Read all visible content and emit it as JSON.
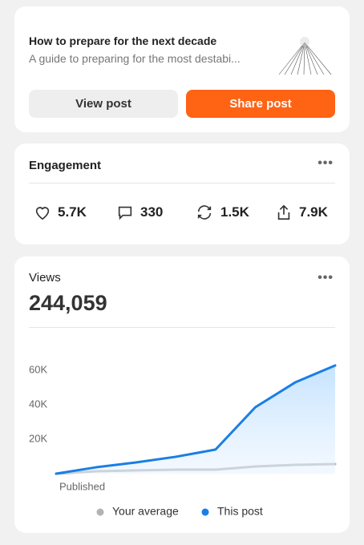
{
  "post": {
    "title": "How to prepare for the next decade",
    "subtitle": "A guide to preparing for the most destabi...",
    "view_button": "View post",
    "share_button": "Share post"
  },
  "engagement": {
    "title": "Engagement",
    "likes": "5.7K",
    "comments": "330",
    "restacks": "1.5K",
    "shares": "7.9K"
  },
  "views": {
    "title": "Views",
    "total": "244,059"
  },
  "chart_data": {
    "type": "line",
    "categories": [
      "Published",
      null,
      null,
      null,
      null,
      null,
      null,
      null
    ],
    "series": [
      {
        "name": "Your average",
        "color": "#b3b3b3",
        "values": [
          0,
          1400,
          1900,
          2300,
          2300,
          4200,
          5100,
          5600
        ]
      },
      {
        "name": "This post",
        "color": "#1a7ee6",
        "values": [
          0,
          3700,
          6500,
          9800,
          14000,
          38600,
          53000,
          62800
        ]
      }
    ],
    "ylim": [
      0,
      65000
    ],
    "yticks": [
      {
        "value": 20000,
        "label": "20K"
      },
      {
        "value": 40000,
        "label": "40K"
      },
      {
        "value": 60000,
        "label": "60K"
      }
    ]
  }
}
